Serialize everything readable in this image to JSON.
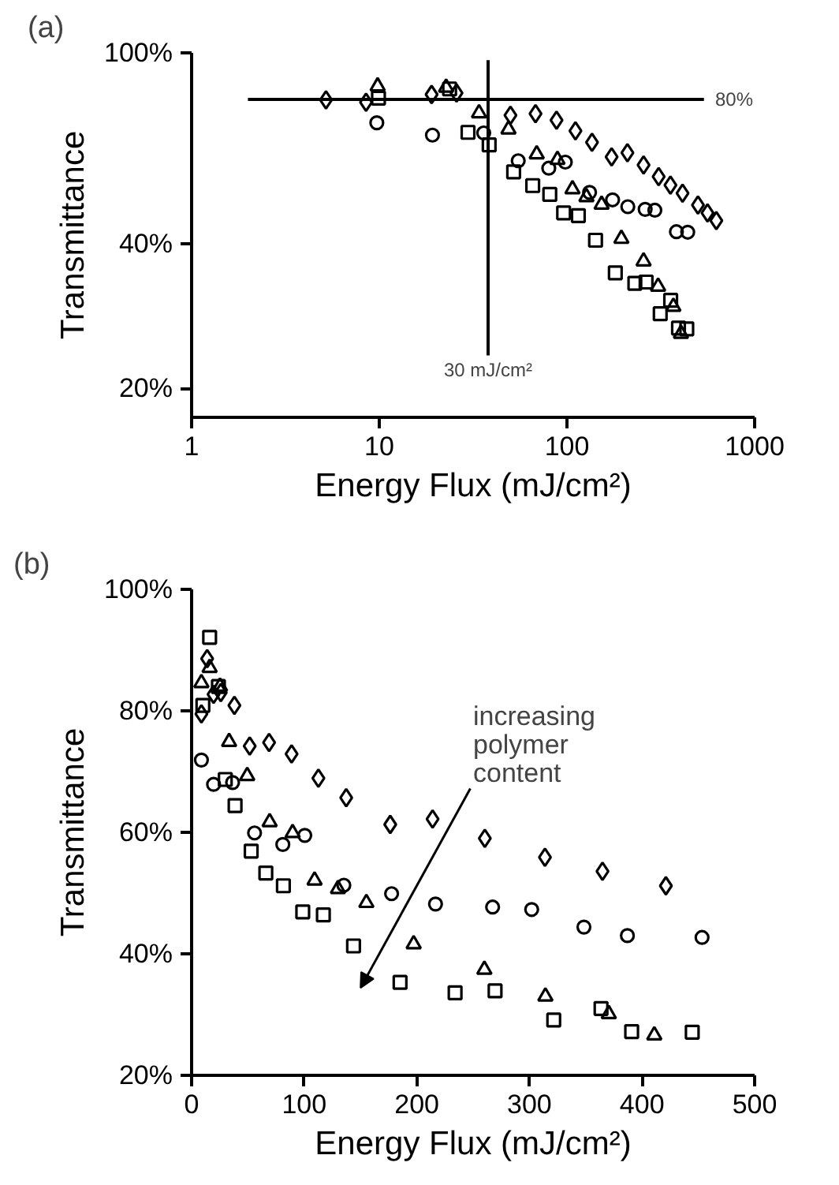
{
  "chart_data": [
    {
      "type": "scatter",
      "title": "(a)",
      "xlabel": "Energy Flux (mJ/cm²)",
      "ylabel": "Transmittance",
      "log": "xy",
      "grid": false,
      "xlim": [
        1,
        1000
      ],
      "ylim": [
        17.4,
        100
      ],
      "xticks": [
        1,
        10,
        100,
        1000
      ],
      "yticks": [
        {
          "value": 20,
          "label": "20%"
        },
        {
          "value": 40,
          "label": "40%"
        },
        {
          "value": 100,
          "label": "100%"
        }
      ],
      "ref_lines": [
        {
          "axis": "y",
          "value": 80,
          "label": "80%"
        },
        {
          "axis": "x",
          "value": 38,
          "label": "30 mJ/cm²"
        }
      ],
      "series": [
        {
          "color": "#000000",
          "marker": "diamond",
          "x": [
            5.2,
            8.5,
            19,
            25.8,
            50,
            68,
            88,
            111,
            136,
            173,
            210,
            256,
            308,
            356,
            413,
            499,
            561,
            625
          ],
          "values": [
            79.8,
            78.9,
            81.9,
            82.5,
            74.1,
            74.7,
            72.4,
            68.8,
            65.1,
            60.7,
            61.9,
            58.4,
            55.2,
            53,
            51,
            48.2,
            46.4,
            44.7
          ]
        },
        {
          "color": "#000000",
          "marker": "circle",
          "x": [
            9.7,
            19.2,
            36,
            55,
            80,
            98,
            132,
            175,
            211,
            261,
            294,
            383,
            440
          ],
          "values": [
            71.5,
            67.4,
            68.1,
            59.6,
            57.5,
            59.2,
            51.2,
            49.4,
            47.8,
            47.2,
            47,
            42.4,
            42.3
          ]
        },
        {
          "color": "#000000",
          "marker": "triangle",
          "x": [
            9.8,
            22.7,
            34,
            48.8,
            69,
            89,
            107,
            127,
            153,
            195,
            256,
            306,
            369,
            405
          ],
          "values": [
            85.2,
            84.7,
            74.9,
            69.3,
            61.5,
            59.9,
            52,
            50.1,
            48.3,
            41,
            36.8,
            32.6,
            29.6,
            26.0
          ]
        },
        {
          "color": "#000000",
          "marker": "square",
          "x": [
            9.9,
            23.7,
            29.7,
            38.5,
            52,
            65.7,
            81,
            96,
            115,
            142,
            181,
            230,
            264,
            314,
            357,
            393,
            435
          ],
          "values": [
            80.5,
            84.1,
            68.3,
            64.3,
            56.5,
            52.9,
            50.7,
            46.4,
            45.8,
            40.7,
            34.8,
            33.1,
            33.3,
            28.6,
            30.5,
            26.7,
            26.6
          ]
        }
      ]
    },
    {
      "type": "scatter",
      "title": "(b)",
      "xlabel": "Energy Flux (mJ/cm²)",
      "ylabel": "Transmittance",
      "grid": false,
      "xlim": [
        0,
        500
      ],
      "ylim": [
        20,
        100
      ],
      "xticks": [
        0,
        100,
        200,
        300,
        400,
        500
      ],
      "yticks": [
        {
          "value": 20,
          "label": "20%"
        },
        {
          "value": 40,
          "label": "40%"
        },
        {
          "value": 60,
          "label": "60%"
        },
        {
          "value": 80,
          "label": "80%"
        },
        {
          "value": 100,
          "label": "100%"
        }
      ],
      "annotations": [
        "increasing\npolymer\ncontent"
      ],
      "series": [
        {
          "color": "#000000",
          "marker": "diamond",
          "x": [
            8.7,
            13.8,
            19.5,
            25.9,
            38,
            51.6,
            68.8,
            88.8,
            112.6,
            137.3,
            176.4,
            214,
            260.4,
            313.8,
            364.9,
            421.2
          ],
          "values": [
            79.5,
            88.6,
            82.7,
            83,
            80.9,
            74.2,
            74.8,
            72.9,
            68.9,
            65.7,
            61.3,
            62.2,
            59.0,
            55.9,
            53.6,
            51.2
          ]
        },
        {
          "color": "#000000",
          "marker": "circle",
          "x": [
            8.7,
            19.5,
            36.4,
            55.9,
            81,
            100.5,
            135.2,
            177.6,
            216.6,
            267.3,
            302,
            348.4,
            387,
            453.3
          ],
          "values": [
            71.9,
            67.9,
            68.2,
            59.9,
            58.0,
            59.5,
            51.3,
            49.9,
            48.2,
            47.7,
            47.3,
            44.4,
            43.0,
            42.7
          ]
        },
        {
          "color": "#000000",
          "marker": "triangle",
          "x": [
            8.7,
            16,
            25.2,
            33.3,
            49.4,
            69.3,
            89.7,
            109.2,
            130,
            155.2,
            197.2,
            260,
            314.2,
            370.5,
            410.9
          ],
          "values": [
            84.6,
            87.1,
            84,
            74.9,
            69.3,
            61.7,
            59.9,
            52.1,
            50.7,
            48.4,
            41.6,
            37.4,
            33.0,
            30.1,
            26.6
          ]
        },
        {
          "color": "#000000",
          "marker": "square",
          "x": [
            16,
            10,
            23.8,
            29.9,
            38.6,
            52.9,
            65.9,
            81.5,
            98.7,
            117,
            143.8,
            185.1,
            234,
            269.5,
            321.6,
            363.6,
            390.8,
            444.6
          ],
          "values": [
            92.1,
            80.9,
            84,
            68.7,
            64.4,
            56.9,
            53.3,
            51.2,
            46.9,
            46.4,
            41.3,
            35.3,
            33.6,
            33.9,
            29.1,
            31.0,
            27.2,
            27.1
          ]
        }
      ]
    }
  ]
}
